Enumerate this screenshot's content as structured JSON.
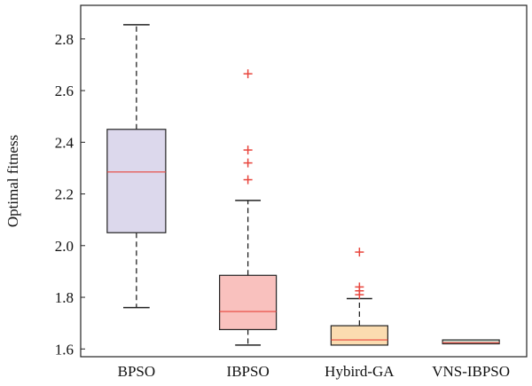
{
  "chart_data": {
    "type": "box",
    "title": "",
    "xlabel": "",
    "ylabel": "Optimal fitness",
    "ylim": [
      1.57,
      2.93
    ],
    "yticks": [
      "1.6",
      "1.8",
      "2.0",
      "2.2",
      "2.4",
      "2.6",
      "2.8"
    ],
    "categories": [
      "BPSO",
      "IBPSO",
      "Hybird-GA",
      "VNS-IBPSO"
    ],
    "boxes": [
      {
        "name": "BPSO",
        "whisker_low": 1.76,
        "q1": 2.05,
        "median": 2.285,
        "q3": 2.45,
        "whisker_high": 2.855,
        "outliers": [],
        "fill": "#dcd8ec"
      },
      {
        "name": "IBPSO",
        "whisker_low": 1.615,
        "q1": 1.675,
        "median": 1.745,
        "q3": 1.885,
        "whisker_high": 2.175,
        "outliers": [
          2.255,
          2.32,
          2.37,
          2.665
        ],
        "fill": "#f9c1be"
      },
      {
        "name": "Hybird-GA",
        "whisker_low": 1.615,
        "q1": 1.615,
        "median": 1.635,
        "q3": 1.69,
        "whisker_high": 1.795,
        "outliers": [
          1.81,
          1.825,
          1.84,
          1.975
        ],
        "fill": "#fbdcb0"
      },
      {
        "name": "VNS-IBPSO",
        "whisker_low": 1.62,
        "q1": 1.62,
        "median": 1.625,
        "q3": 1.635,
        "whisker_high": 1.635,
        "outliers": [],
        "fill": "#cfeee2"
      }
    ],
    "colors": {
      "median": "#e8453c",
      "outlier": "#e8453c",
      "box_edge": "#222222",
      "whisker": "#222222"
    },
    "grid": false,
    "legend": "none"
  }
}
